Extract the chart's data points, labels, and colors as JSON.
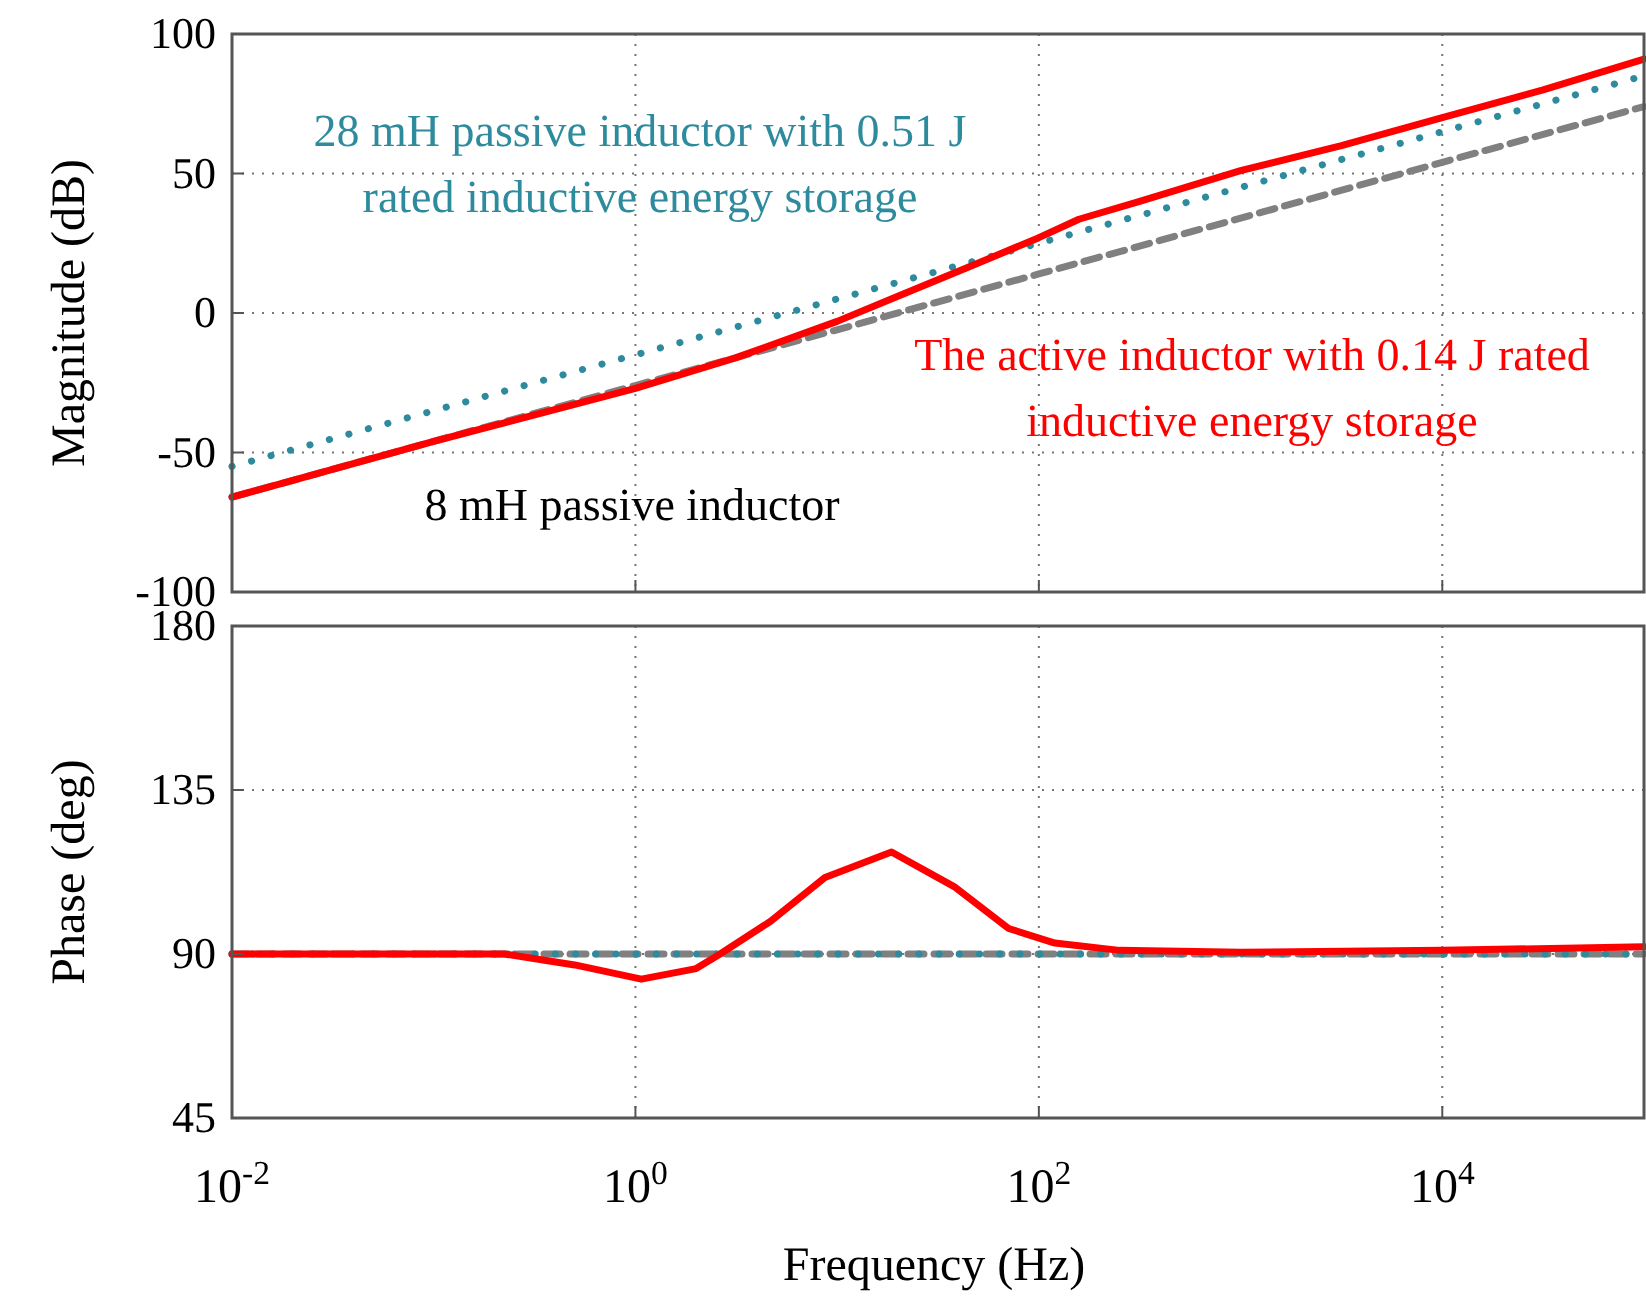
{
  "chart_data": [
    {
      "type": "line",
      "ylabel": "Magnitude (dB)",
      "xlim": [
        0.01,
        100000
      ],
      "ylim": [
        -100,
        100
      ],
      "xticks": [
        {
          "value": 0.01,
          "label": null
        },
        {
          "value": 1,
          "label": null
        },
        {
          "value": 100,
          "label": null
        },
        {
          "value": 10000,
          "label": null
        }
      ],
      "yticks": [
        -100,
        -50,
        0,
        50,
        100
      ],
      "tick_labels": "y",
      "grid": true,
      "log": "x",
      "series": [
        {
          "name": "The active inductor with 0.14 J rated inductive energy storage",
          "color": "#ff0000",
          "line_style": "solid",
          "x": [
            0.01,
            0.1,
            1,
            3.16,
            10,
            20,
            46.8,
            100,
            158,
            316,
            1000,
            3162,
            10000,
            31623,
            100000
          ],
          "values": [
            -66,
            -46,
            -27,
            -16,
            -3,
            6,
            17,
            27,
            33.6,
            40,
            51,
            60,
            70,
            80,
            91
          ]
        },
        {
          "name": "28 mH passive inductor with 0.51 J rated inductive energy storage",
          "color": "#2e8b9e",
          "line_style": "dotted",
          "x": [
            0.01,
            1,
            100,
            10000,
            100000
          ],
          "values": [
            -55,
            -15,
            25,
            65,
            85
          ]
        },
        {
          "name": "8 mH passive inductor",
          "color": "#808080",
          "line_style": "dashed",
          "x": [
            0.01,
            1,
            100,
            10000,
            100000
          ],
          "values": [
            -66,
            -26,
            14,
            54,
            74
          ]
        }
      ]
    },
    {
      "type": "line",
      "ylabel": "Phase (deg)",
      "xlabel": "Frequency (Hz)",
      "xlim": [
        0.01,
        100000
      ],
      "ylim": [
        45,
        180
      ],
      "xticks": [
        {
          "value": 0.01,
          "label": "10$^{-2}$"
        },
        {
          "value": 1,
          "label": "10$^{0}$"
        },
        {
          "value": 100,
          "label": "10$^{2}$"
        },
        {
          "value": 10000,
          "label": "10$^{4}$"
        }
      ],
      "yticks": [
        45,
        90,
        135,
        180
      ],
      "grid": true,
      "log": "x",
      "series": [
        {
          "color": "#ff0000",
          "line_style": "solid",
          "x": [
            0.01,
            0.1,
            0.224,
            0.5,
            1.07,
            2,
            2.63,
            4.68,
            8.7,
            18.6,
            38,
            70.8,
            120,
            251,
            1000,
            10000,
            100000
          ],
          "values": [
            90,
            90,
            90,
            87,
            83.1,
            86,
            90,
            99,
            111,
            118,
            108.5,
            97,
            93,
            91,
            90.5,
            91,
            92
          ]
        },
        {
          "color": "#2e8b9e",
          "line_style": "dotted",
          "x": [
            0.01,
            100000
          ],
          "values": [
            90,
            90
          ]
        },
        {
          "color": "#808080",
          "line_style": "dashed",
          "x": [
            0.01,
            100000
          ],
          "values": [
            90,
            90
          ]
        }
      ]
    }
  ]
}
